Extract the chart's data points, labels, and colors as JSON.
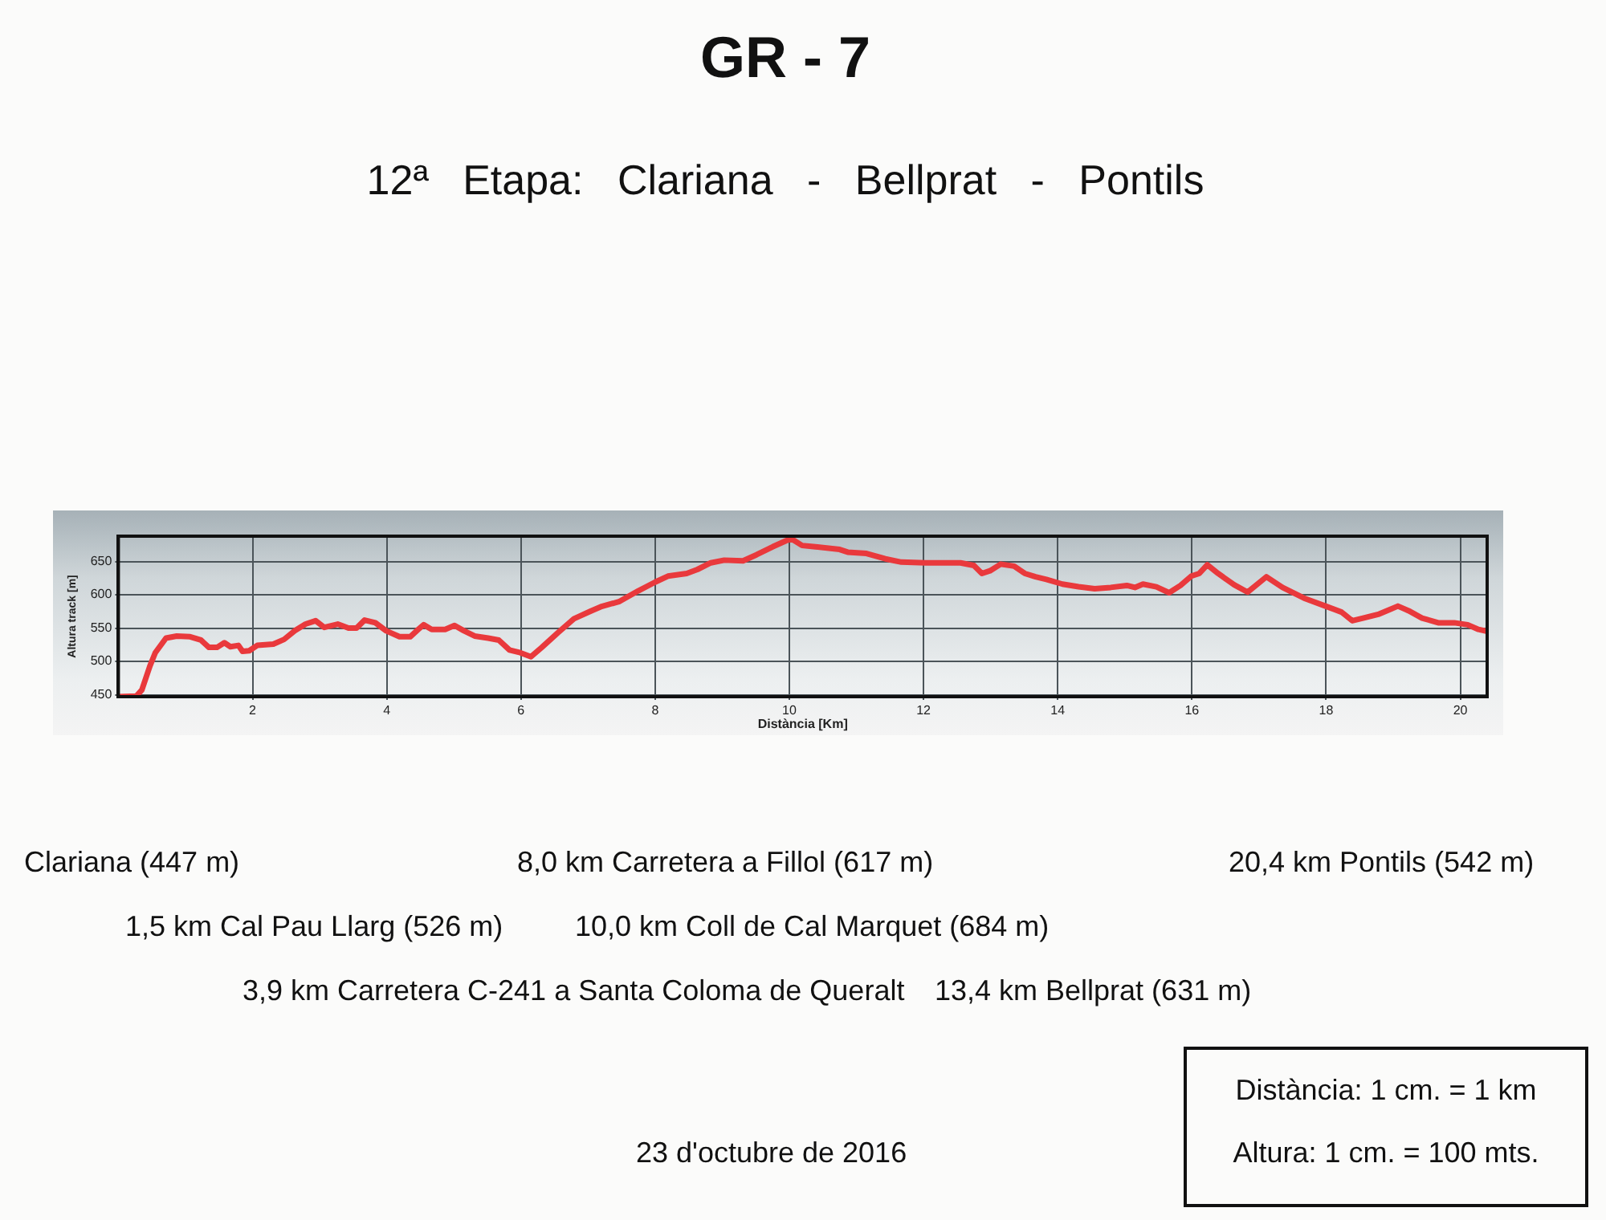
{
  "chart_data": {
    "type": "line",
    "title": "GR - 7",
    "subtitle": "12ª Etapa: Clariana - Bellprat - Pontils",
    "xlabel": "Distància [Km]",
    "ylabel": "Altura track [m]",
    "x": [
      0,
      0.27,
      0.35,
      0.47,
      0.55,
      0.71,
      0.87,
      1.07,
      1.23,
      1.35,
      1.47,
      1.58,
      1.67,
      1.79,
      1.85,
      1.95,
      2.07,
      2.31,
      2.47,
      2.63,
      2.79,
      2.94,
      3.07,
      3.27,
      3.43,
      3.55,
      3.67,
      3.83,
      3.99,
      4.19,
      4.35,
      4.47,
      4.55,
      4.67,
      4.87,
      5.01,
      5.15,
      5.31,
      5.51,
      5.67,
      5.83,
      5.99,
      6.15,
      6.31,
      6.55,
      6.79,
      7.03,
      7.19,
      7.47,
      7.75,
      8.0,
      8.19,
      8.47,
      8.63,
      8.83,
      9.03,
      9.31,
      9.51,
      9.75,
      9.95,
      10.03,
      10.19,
      10.39,
      10.75,
      10.87,
      11.15,
      11.43,
      11.67,
      12.03,
      12.55,
      12.75,
      12.87,
      12.99,
      13.15,
      13.35,
      13.51,
      13.67,
      13.83,
      14.07,
      14.31,
      14.55,
      14.79,
      15.03,
      15.15,
      15.27,
      15.47,
      15.66,
      15.83,
      15.99,
      16.11,
      16.23,
      16.39,
      16.63,
      16.83,
      17.11,
      17.35,
      17.67,
      17.99,
      18.23,
      18.39,
      18.55,
      18.79,
      19.07,
      19.23,
      19.43,
      19.67,
      19.91,
      20.11,
      20.27,
      20.4
    ],
    "values": [
      447,
      448,
      457,
      493,
      513,
      535,
      538,
      537,
      532,
      521,
      521,
      528,
      522,
      524,
      515,
      516,
      524,
      526,
      533,
      546,
      556,
      561,
      551,
      556,
      550,
      550,
      562,
      558,
      546,
      537,
      537,
      548,
      555,
      548,
      548,
      554,
      546,
      538,
      535,
      532,
      517,
      513,
      507,
      521,
      543,
      564,
      575,
      582,
      590,
      606,
      619,
      628,
      632,
      638,
      648,
      652,
      651,
      660,
      672,
      681,
      684,
      674,
      672,
      668,
      664,
      662,
      654,
      649,
      648,
      648,
      644,
      632,
      636,
      646,
      643,
      632,
      627,
      623,
      616,
      612,
      609,
      611,
      614,
      611,
      616,
      612,
      603,
      614,
      628,
      632,
      645,
      632,
      615,
      604,
      627,
      611,
      595,
      583,
      574,
      561,
      565,
      571,
      583,
      576,
      565,
      558,
      558,
      555,
      548,
      545
    ],
    "color": "#e9393c",
    "xlim": [
      0,
      20.4
    ],
    "ylim": [
      447,
      688
    ],
    "xticks": [
      2,
      4,
      6,
      8,
      10,
      12,
      14,
      16,
      18,
      20
    ],
    "yticks": [
      450,
      500,
      550,
      600,
      650
    ],
    "grid": true,
    "marker": "none",
    "line_style": "solid",
    "annotations": [
      "Clariana (447 m)",
      "8,0 km Carretera a Fillol (617 m)",
      "20,4 km Pontils (542 m)",
      "1,5 km Cal Pau Llarg (526 m)",
      "10,0 km Coll de Cal Marquet (684 m)",
      "3,9 km Carretera C-241 a Santa Coloma de Queralt",
      "13,4 km Bellprat (631 m)",
      "23 d'octubre de 2016",
      "Distància: 1 cm. = 1 km",
      "Altura: 1 cm. = 100 mts."
    ]
  }
}
